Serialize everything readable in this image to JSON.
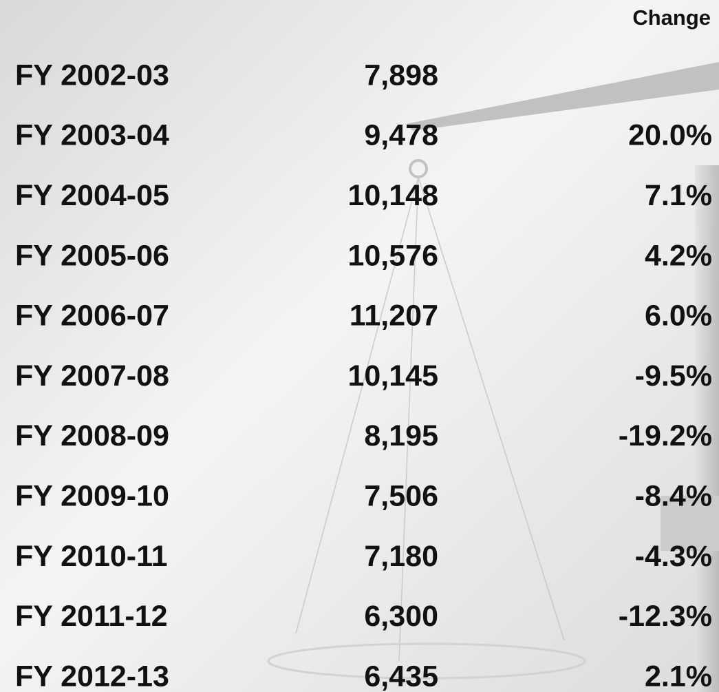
{
  "table": {
    "change_header": "Change",
    "rows": [
      [
        "FY 2002-03",
        "7,898"
      ],
      [
        "FY 2003-04",
        "9,478",
        "20.0%"
      ],
      [
        "FY 2004-05",
        "10,148",
        "7.1%"
      ],
      [
        "FY 2005-06",
        "10,576",
        "4.2%"
      ],
      [
        "FY 2006-07",
        "11,207",
        "6.0%"
      ],
      [
        "FY 2007-08",
        "10,145",
        "-9.5%"
      ],
      [
        "FY 2008-09",
        "8,195",
        "-19.2%"
      ],
      [
        "FY 2009-10",
        "7,506",
        "-8.4%"
      ],
      [
        "FY 2010-11",
        "7,180",
        "-4.3%"
      ],
      [
        "FY 2011-12",
        "6,300",
        "-12.3%"
      ],
      [
        "FY 2012-13",
        "6,435",
        "2.1%"
      ]
    ]
  }
}
